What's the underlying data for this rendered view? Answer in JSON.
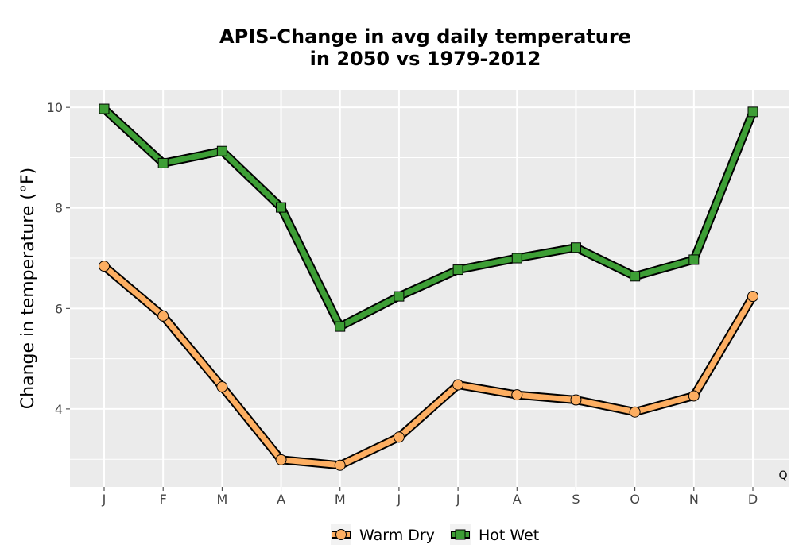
{
  "chart_data": {
    "type": "line",
    "title_lines": [
      "APIS-Change in avg daily temperature",
      "in 2050 vs 1979-2012"
    ],
    "xlabel": "",
    "ylabel": "Change in temperature (°F)",
    "categories": [
      "J",
      "F",
      "M",
      "A",
      "M",
      "J",
      "J",
      "A",
      "S",
      "O",
      "N",
      "D"
    ],
    "ylim": [
      2.45,
      10.35
    ],
    "yticks": [
      4,
      6,
      8,
      10
    ],
    "grid": true,
    "legend_position": "bottom",
    "corner_note": "Q",
    "series": [
      {
        "name": "Warm Dry",
        "values": [
          6.84,
          5.85,
          4.44,
          2.99,
          2.88,
          3.44,
          4.48,
          4.28,
          4.18,
          3.94,
          4.26,
          6.24
        ],
        "color": "#FDAE61",
        "marker": "circle"
      },
      {
        "name": "Hot Wet",
        "values": [
          9.97,
          8.89,
          9.13,
          8.01,
          5.64,
          6.24,
          6.77,
          7.0,
          7.21,
          6.64,
          6.97,
          9.91
        ],
        "color": "#3D9E35",
        "marker": "square"
      }
    ]
  }
}
